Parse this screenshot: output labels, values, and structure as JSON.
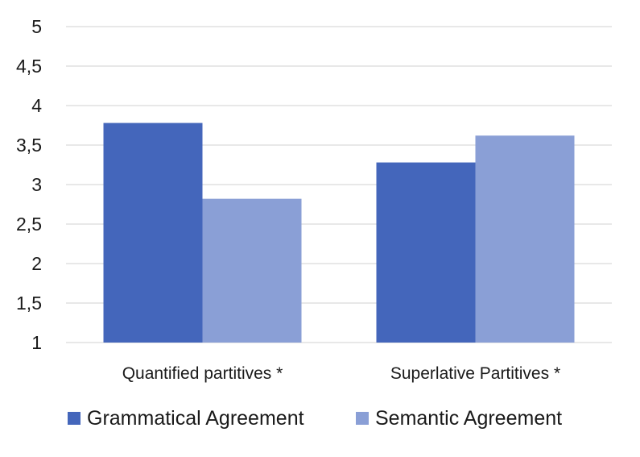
{
  "chart_data": {
    "type": "bar",
    "title": "",
    "xlabel": "",
    "ylabel": "",
    "categories": [
      "Quantified partitives *",
      "Superlative Partitives *"
    ],
    "series": [
      {
        "name": "Grammatical Agreement",
        "values": [
          3.78,
          3.28
        ],
        "color": "#4466bb"
      },
      {
        "name": "Semantic Agreement",
        "values": [
          2.82,
          3.62
        ],
        "color": "#8a9fd6"
      }
    ],
    "ylim": [
      1,
      5
    ],
    "yticks": [
      "1",
      "1,5",
      "2",
      "2,5",
      "3",
      "3,5",
      "4",
      "4,5",
      "5"
    ],
    "grid": true,
    "legend_position": "bottom"
  }
}
